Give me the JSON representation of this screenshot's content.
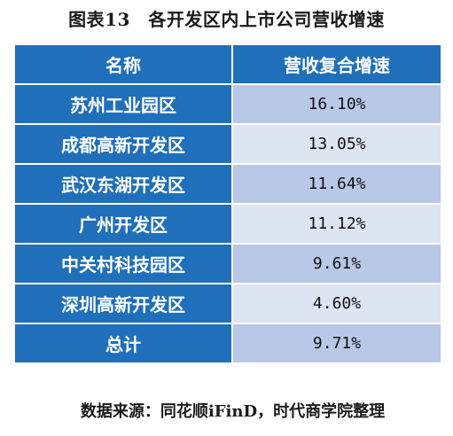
{
  "title": "图表13　各开发区内上市公司营收增速",
  "table": {
    "headers": [
      "名称",
      "营收复合增速"
    ],
    "rows": [
      {
        "name": "苏州工业园区",
        "value": "16.10%"
      },
      {
        "name": "成都高新开发区",
        "value": "13.05%"
      },
      {
        "name": "武汉东湖开发区",
        "value": "11.64%"
      },
      {
        "name": "广州开发区",
        "value": "11.12%"
      },
      {
        "name": "中关村科技园区",
        "value": "9.61%"
      },
      {
        "name": "深圳高新开发区",
        "value": "4.60%"
      },
      {
        "name": "总计",
        "value": "9.71%"
      }
    ]
  },
  "source": "数据来源：同花顺iFinD，时代商学院整理",
  "colors": {
    "header_bg": "#1f6fba",
    "row_shade": "#b8c8e6",
    "row_light": "#dde4f2"
  }
}
